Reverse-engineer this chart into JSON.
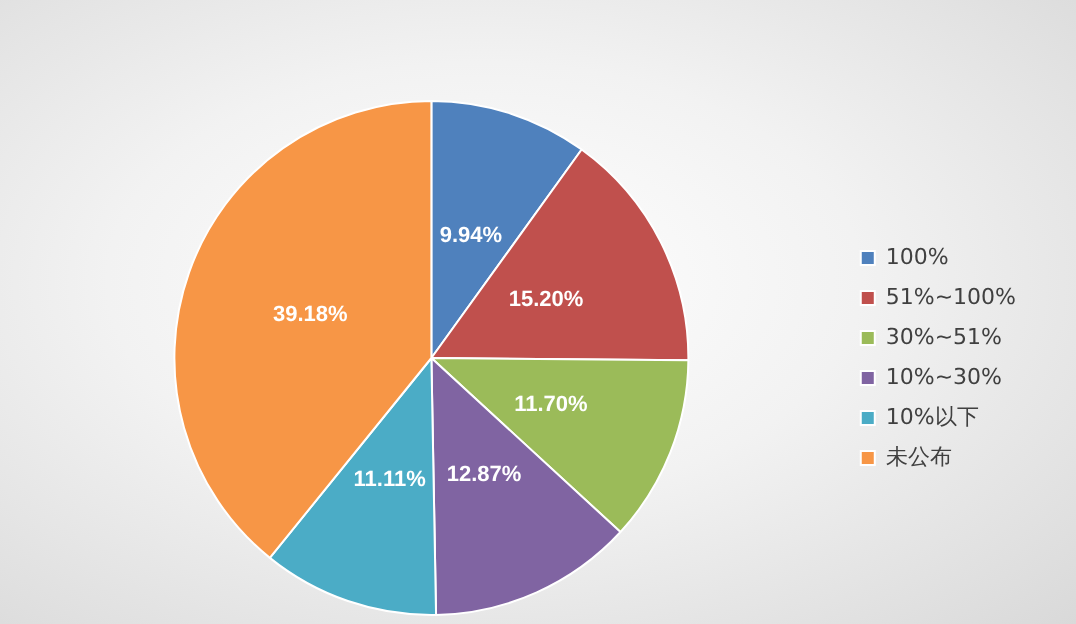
{
  "chart_data": {
    "type": "pie",
    "categories": [
      "100%",
      "51%~100%",
      "30%~51%",
      "10%~30%",
      "10%以下",
      "未公布"
    ],
    "values": [
      9.94,
      15.2,
      11.7,
      12.87,
      11.11,
      39.18
    ],
    "value_labels": [
      "9.94%",
      "15.20%",
      "11.70%",
      "12.87%",
      "11.11%",
      "39.18%"
    ],
    "colors": [
      "#4f81bd",
      "#c0504d",
      "#9bbb59",
      "#8064a2",
      "#4bacc6",
      "#f79646"
    ],
    "legend": "right"
  }
}
